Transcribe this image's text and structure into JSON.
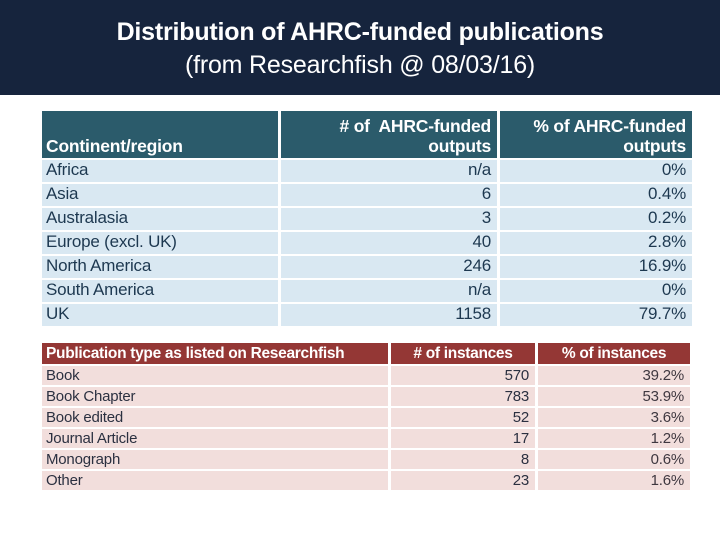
{
  "slide": {
    "title_line1": "Distribution of AHRC-funded publications",
    "title_line2": "(from Researchfish @ 08/03/16)"
  },
  "colors": {
    "title_band_bg": "#16243d",
    "title_text": "#ffffff",
    "continent_header_bg": "#2b5b6b",
    "continent_row_bg": "#d9e8f2",
    "continent_text": "#1d3850",
    "publication_header_bg": "#943735",
    "publication_row_bg": "#f2dedc",
    "publication_text": "#2b3040"
  },
  "tables": [
    {
      "name": "continent-distribution",
      "headers": [
        "Continent/region",
        "# of  AHRC-funded\noutputs",
        "% of AHRC-funded\noutputs"
      ],
      "rows": [
        [
          "Africa",
          "n/a",
          "0%"
        ],
        [
          "Asia",
          "6",
          "0.4%"
        ],
        [
          "Australasia",
          "3",
          "0.2%"
        ],
        [
          "Europe (excl. UK)",
          "40",
          "2.8%"
        ],
        [
          "North America",
          "246",
          "16.9%"
        ],
        [
          "South America",
          "n/a",
          "0%"
        ],
        [
          "UK",
          "1158",
          "79.7%"
        ]
      ]
    },
    {
      "name": "publication-types",
      "headers": [
        "Publication type as listed on Researchfish",
        "# of instances",
        "% of instances"
      ],
      "rows": [
        [
          "Book",
          "570",
          "39.2%"
        ],
        [
          "Book Chapter",
          "783",
          "53.9%"
        ],
        [
          "Book edited",
          "52",
          "3.6%"
        ],
        [
          "Journal Article",
          "17",
          "1.2%"
        ],
        [
          "Monograph",
          "8",
          "0.6%"
        ],
        [
          "Other",
          "23",
          "1.6%"
        ]
      ]
    }
  ]
}
